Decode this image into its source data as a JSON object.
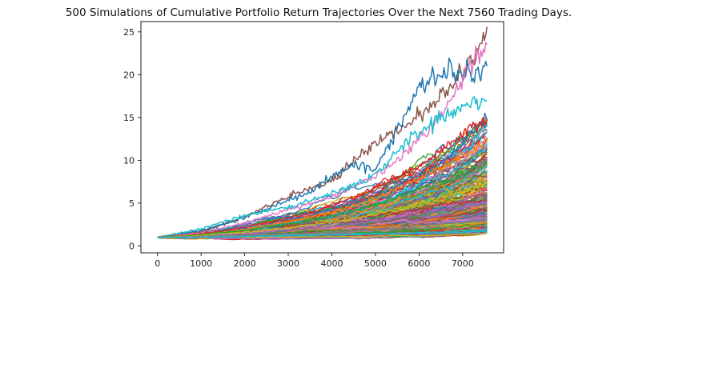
{
  "chart_data": {
    "type": "line",
    "title": "500 Simulations of Cumulative Portfolio Return Trajectories Over the Next 7560 Trading Days.",
    "xlabel": "",
    "ylabel": "",
    "xlim": [
      -380,
      7940
    ],
    "ylim": [
      -0.8,
      26.2
    ],
    "x_ticks": [
      0,
      1000,
      2000,
      3000,
      4000,
      5000,
      6000,
      7000
    ],
    "y_ticks": [
      0,
      5,
      10,
      15,
      20,
      25
    ],
    "num_simulations": 500,
    "num_days": 7560,
    "start_value": 1.0,
    "final_value_range": [
      1.5,
      25.6
    ],
    "grid": false,
    "legend": "none",
    "palette": [
      "#1f77b4",
      "#ff7f0e",
      "#2ca02c",
      "#d62728",
      "#9467bd",
      "#8c564b",
      "#e377c2",
      "#7f7f7f",
      "#bcbd22",
      "#17becf"
    ],
    "highlighted_series": [
      {
        "color": "#8c564b",
        "values": [
          [
            0,
            1.0
          ],
          [
            1000,
            1.6
          ],
          [
            2000,
            3.4
          ],
          [
            2800,
            5.3
          ],
          [
            3500,
            6.8
          ],
          [
            4000,
            7.5
          ],
          [
            4500,
            9.8
          ],
          [
            5000,
            12.0
          ],
          [
            5500,
            13.4
          ],
          [
            6000,
            15.4
          ],
          [
            6400,
            17.2
          ],
          [
            6900,
            19.8
          ],
          [
            7300,
            21.8
          ],
          [
            7560,
            25.6
          ]
        ]
      },
      {
        "color": "#1f77b4",
        "values": [
          [
            0,
            1.0
          ],
          [
            1000,
            1.8
          ],
          [
            2000,
            3.3
          ],
          [
            3000,
            5.3
          ],
          [
            3500,
            6.2
          ],
          [
            4000,
            8.1
          ],
          [
            4500,
            9.5
          ],
          [
            5000,
            9.0
          ],
          [
            5500,
            13.5
          ],
          [
            6000,
            18.5
          ],
          [
            6300,
            19.6
          ],
          [
            6800,
            20.5
          ],
          [
            7200,
            19.8
          ],
          [
            7560,
            21.0
          ]
        ]
      },
      {
        "color": "#e377c2",
        "values": [
          [
            0,
            1.0
          ],
          [
            1000,
            1.5
          ],
          [
            2000,
            2.7
          ],
          [
            3000,
            4.2
          ],
          [
            4000,
            5.8
          ],
          [
            5000,
            8.1
          ],
          [
            5600,
            10.4
          ],
          [
            6200,
            13.5
          ],
          [
            6800,
            17.8
          ],
          [
            7200,
            21.4
          ],
          [
            7560,
            23.5
          ]
        ]
      },
      {
        "color": "#17becf",
        "values": [
          [
            0,
            1.0
          ],
          [
            1000,
            2.0
          ],
          [
            1800,
            3.3
          ],
          [
            2500,
            4.1
          ],
          [
            3000,
            4.5
          ],
          [
            4000,
            6.0
          ],
          [
            5000,
            8.2
          ],
          [
            5800,
            12.5
          ],
          [
            6500,
            15.0
          ],
          [
            7000,
            16.2
          ],
          [
            7560,
            17.0
          ]
        ]
      },
      {
        "color": "#d62728",
        "values": [
          [
            0,
            1.0
          ],
          [
            1000,
            1.4
          ],
          [
            2000,
            2.2
          ],
          [
            3000,
            3.2
          ],
          [
            4000,
            4.6
          ],
          [
            5000,
            6.8
          ],
          [
            6000,
            9.3
          ],
          [
            6800,
            12.5
          ],
          [
            7560,
            14.7
          ]
        ]
      },
      {
        "color": "#ff7f0e",
        "values": [
          [
            0,
            1.0
          ],
          [
            1000,
            1.3
          ],
          [
            2000,
            1.9
          ],
          [
            3000,
            2.8
          ],
          [
            4000,
            3.9
          ],
          [
            5000,
            5.5
          ],
          [
            6000,
            8.0
          ],
          [
            7000,
            10.5
          ],
          [
            7560,
            12.2
          ]
        ]
      },
      {
        "color": "#2ca02c",
        "values": [
          [
            0,
            1.0
          ],
          [
            1000,
            1.3
          ],
          [
            2000,
            1.8
          ],
          [
            3000,
            2.6
          ],
          [
            4000,
            3.5
          ],
          [
            5000,
            4.8
          ],
          [
            6000,
            6.5
          ],
          [
            7000,
            8.5
          ],
          [
            7560,
            9.6
          ]
        ]
      },
      {
        "color": "#bcbd22",
        "values": [
          [
            0,
            1.0
          ],
          [
            1000,
            1.2
          ],
          [
            2000,
            1.6
          ],
          [
            3000,
            2.1
          ],
          [
            4000,
            2.8
          ],
          [
            5000,
            3.7
          ],
          [
            6000,
            4.9
          ],
          [
            7000,
            6.4
          ],
          [
            7560,
            7.3
          ]
        ]
      },
      {
        "color": "#9467bd",
        "values": [
          [
            0,
            1.0
          ],
          [
            1000,
            1.1
          ],
          [
            2000,
            1.4
          ],
          [
            3000,
            1.8
          ],
          [
            4000,
            2.2
          ],
          [
            5000,
            2.9
          ],
          [
            6000,
            3.7
          ],
          [
            7000,
            4.6
          ],
          [
            7560,
            5.1
          ]
        ]
      },
      {
        "color": "#7f7f7f",
        "values": [
          [
            0,
            1.0
          ],
          [
            1000,
            1.1
          ],
          [
            2000,
            1.2
          ],
          [
            3000,
            1.4
          ],
          [
            4000,
            1.6
          ],
          [
            5000,
            1.9
          ],
          [
            6000,
            2.3
          ],
          [
            7000,
            2.8
          ],
          [
            7560,
            3.1
          ]
        ]
      },
      {
        "color": "#17becf",
        "values": [
          [
            0,
            1.0
          ],
          [
            1000,
            1.0
          ],
          [
            2000,
            1.1
          ],
          [
            3000,
            1.2
          ],
          [
            4000,
            1.3
          ],
          [
            5000,
            1.4
          ],
          [
            6000,
            1.5
          ],
          [
            7000,
            1.6
          ],
          [
            7560,
            1.7
          ]
        ]
      }
    ]
  }
}
